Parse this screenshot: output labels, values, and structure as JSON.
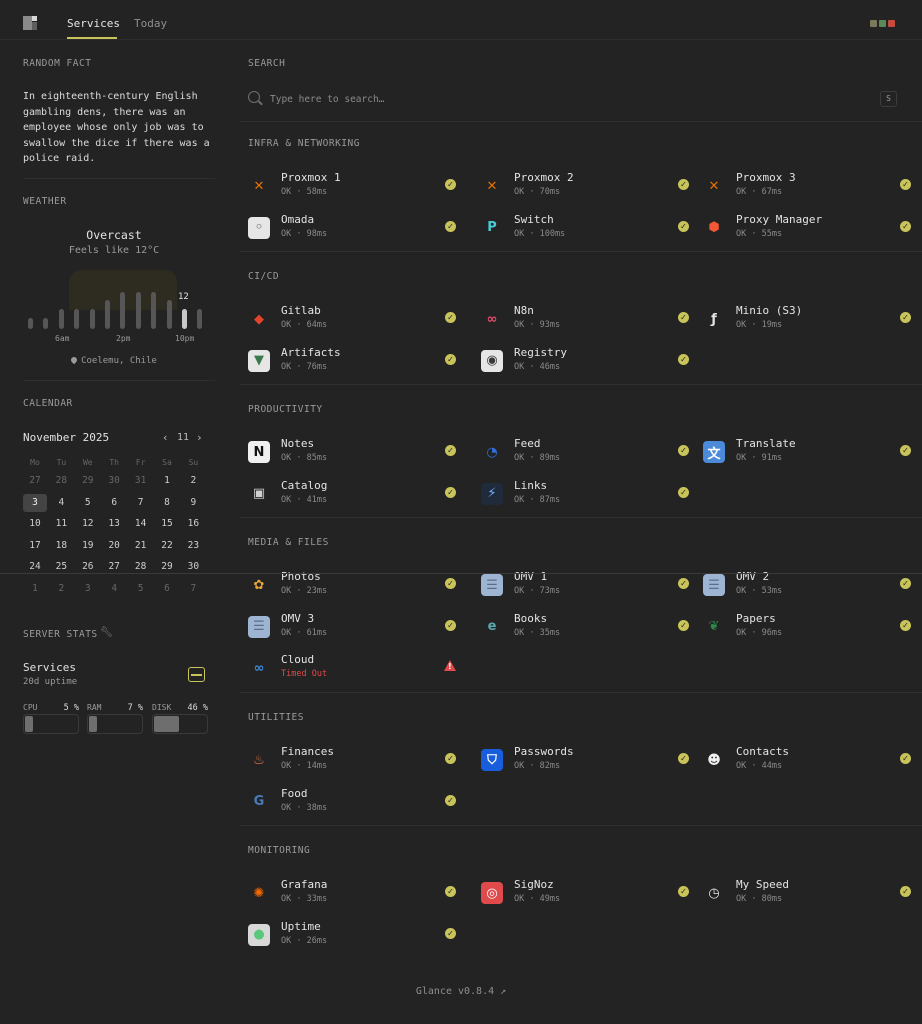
{
  "nav": {
    "tabs": [
      "Services",
      "Today"
    ],
    "theme_colors": [
      "#7a7a5a",
      "#5a8a5a",
      "#c84a3a"
    ]
  },
  "random_fact": {
    "title": "RANDOM FACT",
    "text": "In eighteenth-century English gambling dens, there was an employee whose only job was to swallow the dice if there was a police raid."
  },
  "weather": {
    "title": "WEATHER",
    "condition": "Overcast",
    "feels_like": "Feels like 12°C",
    "current_temp": "12",
    "hour_labels": [
      "6am",
      "2pm",
      "10pm"
    ],
    "bar_levels": [
      0.25,
      0.25,
      0.45,
      0.45,
      0.45,
      0.65,
      0.85,
      0.85,
      0.85,
      0.65,
      0.45,
      0.45
    ],
    "current_index": 10,
    "location": "Coelemu, Chile",
    "icon": "location-pin-icon"
  },
  "calendar": {
    "title": "CALENDAR",
    "month": "November 2025",
    "week_number": "11",
    "weekdays": [
      "Mo",
      "Tu",
      "We",
      "Th",
      "Fr",
      "Sa",
      "Su"
    ],
    "weeks": [
      [
        {
          "d": "27",
          "m": true
        },
        {
          "d": "28",
          "m": true
        },
        {
          "d": "29",
          "m": true
        },
        {
          "d": "30",
          "m": true
        },
        {
          "d": "31",
          "m": true
        },
        {
          "d": "1"
        },
        {
          "d": "2"
        }
      ],
      [
        {
          "d": "3",
          "t": true
        },
        {
          "d": "4"
        },
        {
          "d": "5"
        },
        {
          "d": "6"
        },
        {
          "d": "7"
        },
        {
          "d": "8"
        },
        {
          "d": "9"
        }
      ],
      [
        {
          "d": "10"
        },
        {
          "d": "11"
        },
        {
          "d": "12"
        },
        {
          "d": "13"
        },
        {
          "d": "14"
        },
        {
          "d": "15"
        },
        {
          "d": "16"
        }
      ],
      [
        {
          "d": "17"
        },
        {
          "d": "18"
        },
        {
          "d": "19"
        },
        {
          "d": "20"
        },
        {
          "d": "21"
        },
        {
          "d": "22"
        },
        {
          "d": "23"
        }
      ],
      [
        {
          "d": "24"
        },
        {
          "d": "25"
        },
        {
          "d": "26"
        },
        {
          "d": "27"
        },
        {
          "d": "28"
        },
        {
          "d": "29"
        },
        {
          "d": "30"
        }
      ],
      [
        {
          "d": "1",
          "m": true
        },
        {
          "d": "2",
          "m": true
        },
        {
          "d": "3",
          "m": true
        },
        {
          "d": "4",
          "m": true
        },
        {
          "d": "5",
          "m": true
        },
        {
          "d": "6",
          "m": true
        },
        {
          "d": "7",
          "m": true
        }
      ]
    ]
  },
  "server_stats": {
    "title": "SERVER STATS",
    "name": "Services",
    "uptime": "20d uptime",
    "meters": [
      {
        "label": "CPU",
        "value": "5",
        "unit": "%",
        "fraction": 0.05
      },
      {
        "label": "RAM",
        "value": "7",
        "unit": "%",
        "fraction": 0.07
      },
      {
        "label": "DISK",
        "value": "46",
        "unit": "%",
        "fraction": 0.46
      }
    ]
  },
  "search": {
    "title": "SEARCH",
    "placeholder": "Type here to search…",
    "shortcut": "S"
  },
  "groups": [
    {
      "title": "INFRA & NETWORKING",
      "items": [
        {
          "name": "Proxmox 1",
          "status": "OK · 58ms",
          "icon": "proxmox-icon",
          "ok": true
        },
        {
          "name": "Proxmox 2",
          "status": "OK · 70ms",
          "icon": "proxmox-icon",
          "ok": true
        },
        {
          "name": "Proxmox 3",
          "status": "OK · 67ms",
          "icon": "proxmox-icon",
          "ok": true
        },
        {
          "name": "Omada",
          "status": "OK · 98ms",
          "icon": "omada-icon",
          "ok": true
        },
        {
          "name": "Switch",
          "status": "OK · 100ms",
          "icon": "tplink-icon",
          "ok": true
        },
        {
          "name": "Proxy Manager",
          "status": "OK · 55ms",
          "icon": "proxy-manager-icon",
          "ok": true
        }
      ]
    },
    {
      "title": "CI/CD",
      "items": [
        {
          "name": "Gitlab",
          "status": "OK · 64ms",
          "icon": "gitlab-icon",
          "ok": true
        },
        {
          "name": "N8n",
          "status": "OK · 93ms",
          "icon": "n8n-icon",
          "ok": true
        },
        {
          "name": "Minio (S3)",
          "status": "OK · 19ms",
          "icon": "minio-icon",
          "ok": true
        },
        {
          "name": "Artifacts",
          "status": "OK · 76ms",
          "icon": "artifacts-icon",
          "ok": true
        },
        {
          "name": "Registry",
          "status": "OK · 46ms",
          "icon": "registry-icon",
          "ok": true
        }
      ]
    },
    {
      "title": "PRODUCTIVITY",
      "items": [
        {
          "name": "Notes",
          "status": "OK · 85ms",
          "icon": "notion-icon",
          "ok": true
        },
        {
          "name": "Feed",
          "status": "OK · 89ms",
          "icon": "feed-icon",
          "ok": true
        },
        {
          "name": "Translate",
          "status": "OK · 91ms",
          "icon": "translate-icon",
          "ok": true
        },
        {
          "name": "Catalog",
          "status": "OK · 41ms",
          "icon": "catalog-icon",
          "ok": true
        },
        {
          "name": "Links",
          "status": "OK · 87ms",
          "icon": "links-icon",
          "ok": true
        }
      ]
    },
    {
      "title": "MEDIA & FILES",
      "items": [
        {
          "name": "Photos",
          "status": "OK · 23ms",
          "icon": "photos-icon",
          "ok": true
        },
        {
          "name": "OMV 1",
          "status": "OK · 73ms",
          "icon": "omv-icon",
          "ok": true
        },
        {
          "name": "OMV 2",
          "status": "OK · 53ms",
          "icon": "omv-icon",
          "ok": true
        },
        {
          "name": "OMV 3",
          "status": "OK · 61ms",
          "icon": "omv-icon",
          "ok": true
        },
        {
          "name": "Books",
          "status": "OK · 35ms",
          "icon": "books-icon",
          "ok": true
        },
        {
          "name": "Papers",
          "status": "OK · 96ms",
          "icon": "papers-icon",
          "ok": true
        },
        {
          "name": "Cloud",
          "status": "Timed Out",
          "icon": "cloud-icon",
          "ok": false
        }
      ]
    },
    {
      "title": "UTILITIES",
      "items": [
        {
          "name": "Finances",
          "status": "OK · 14ms",
          "icon": "finances-icon",
          "ok": true
        },
        {
          "name": "Passwords",
          "status": "OK · 82ms",
          "icon": "bitwarden-icon",
          "ok": true
        },
        {
          "name": "Contacts",
          "status": "OK · 44ms",
          "icon": "contacts-icon",
          "ok": true
        },
        {
          "name": "Food",
          "status": "OK · 38ms",
          "icon": "food-icon",
          "ok": true
        }
      ]
    },
    {
      "title": "MONITORING",
      "items": [
        {
          "name": "Grafana",
          "status": "OK · 33ms",
          "icon": "grafana-icon",
          "ok": true
        },
        {
          "name": "SigNoz",
          "status": "OK · 49ms",
          "icon": "signoz-icon",
          "ok": true
        },
        {
          "name": "My Speed",
          "status": "OK · 80ms",
          "icon": "speed-icon",
          "ok": true
        },
        {
          "name": "Uptime",
          "status": "OK · 26ms",
          "icon": "uptime-icon",
          "ok": true
        }
      ]
    }
  ],
  "footer": {
    "text": "Glance v0.8.4 ↗"
  },
  "colors": {
    "accent": "#c8c45a",
    "error": "#e04a4a",
    "background": "#232323"
  }
}
